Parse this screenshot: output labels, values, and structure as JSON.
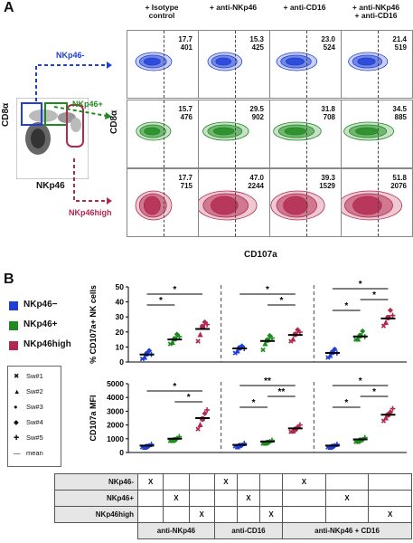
{
  "panels": {
    "a": "A",
    "b": "B"
  },
  "flow": {
    "columns": [
      "+ Isotype control",
      "+ anti-NKp46",
      "+ anti-CD16",
      "+ anti-NKp46 + anti-CD16"
    ],
    "col_lines": [
      [
        "+ Isotype",
        "control"
      ],
      [
        "+ anti-NKp46",
        ""
      ],
      [
        "+ anti-CD16",
        ""
      ],
      [
        "+ anti-NKp46",
        "+ anti-CD16"
      ]
    ],
    "rows": [
      {
        "label": "NKp46-",
        "color": "#1f3fd6",
        "values": [
          [
            "17.7",
            "401"
          ],
          [
            "15.3",
            "425"
          ],
          [
            "23.0",
            "524"
          ],
          [
            "21.4",
            "519"
          ]
        ]
      },
      {
        "label": "NKp46+",
        "color": "#1f8a1f",
        "values": [
          [
            "15.7",
            "476"
          ],
          [
            "29.5",
            "902"
          ],
          [
            "31.8",
            "708"
          ],
          [
            "34.5",
            "885"
          ]
        ]
      },
      {
        "label": "NKp46high",
        "color": "#b2284e",
        "values": [
          [
            "17.7",
            "715"
          ],
          [
            "47.0",
            "2244"
          ],
          [
            "39.3",
            "1529"
          ],
          [
            "51.8",
            "2076"
          ]
        ]
      }
    ],
    "y_label": "CD8α",
    "x_label": "CD107a",
    "gating": {
      "y_label": "CD8α",
      "x_label": "NKp46"
    }
  },
  "legend": {
    "groups": [
      {
        "label": "NKp46−",
        "color": "#1f3fd6"
      },
      {
        "label": "NKp46+",
        "color": "#1f8a1f"
      },
      {
        "label": "NKp46high",
        "color": "#b2284e"
      }
    ],
    "subjects": [
      {
        "symbol": "✖",
        "label": "Sw#1"
      },
      {
        "symbol": "▲",
        "label": "Sw#2"
      },
      {
        "symbol": "●",
        "label": "Sw#3"
      },
      {
        "symbol": "◆",
        "label": "Sw#4"
      },
      {
        "symbol": "✚",
        "label": "Sw#5"
      },
      {
        "symbol": "—",
        "label": "mean"
      }
    ]
  },
  "chart_data": [
    {
      "type": "scatter",
      "ylabel": "% CD107a+ NK cells",
      "ylim": [
        0,
        50
      ],
      "yticks": [
        0,
        10,
        20,
        30,
        40,
        50
      ],
      "groups": [
        "NKp46−",
        "NKp46+",
        "NKp46high"
      ],
      "series": [
        {
          "treatment": "anti-NKp46",
          "means": [
            5,
            15,
            22
          ],
          "points": [
            [
              2,
              4,
              6,
              8,
              5
            ],
            [
              12,
              14,
              16,
              19,
              17
            ],
            [
              14,
              19,
              24,
              27,
              25
            ]
          ]
        },
        {
          "treatment": "anti-CD16",
          "means": [
            9,
            14,
            18
          ],
          "points": [
            [
              6,
              8,
              10,
              11,
              9
            ],
            [
              8,
              13,
              15,
              18,
              16
            ],
            [
              14,
              16,
              19,
              22,
              20
            ]
          ]
        },
        {
          "treatment": "anti-NKp46 + CD16",
          "means": [
            6,
            17,
            29
          ],
          "points": [
            [
              3,
              5,
              7,
              9,
              6
            ],
            [
              15,
              16,
              18,
              21,
              17
            ],
            [
              24,
              27,
              30,
              35,
              31
            ]
          ]
        }
      ],
      "significance": [
        {
          "treatment": 0,
          "pairs": [
            [
              0,
              1,
              "*"
            ],
            [
              0,
              2,
              "*"
            ]
          ]
        },
        {
          "treatment": 1,
          "pairs": [
            [
              1,
              2,
              "*"
            ],
            [
              0,
              2,
              "*"
            ]
          ]
        },
        {
          "treatment": 2,
          "pairs": [
            [
              0,
              1,
              "*"
            ],
            [
              1,
              2,
              "*"
            ],
            [
              0,
              2,
              "*"
            ]
          ]
        }
      ]
    },
    {
      "type": "scatter",
      "ylabel": "CD107a MFI",
      "ylim": [
        0,
        5000
      ],
      "yticks": [
        0,
        1000,
        2000,
        3000,
        4000,
        5000
      ],
      "groups": [
        "NKp46−",
        "NKp46+",
        "NKp46high"
      ],
      "series": [
        {
          "treatment": "anti-NKp46",
          "means": [
            500,
            1000,
            2500
          ],
          "points": [
            [
              400,
              450,
              500,
              550,
              600
            ],
            [
              850,
              950,
              1000,
              1100,
              1150
            ],
            [
              1700,
              2100,
              2500,
              2900,
              3100
            ]
          ]
        },
        {
          "treatment": "anti-CD16",
          "means": [
            550,
            800,
            1750
          ],
          "points": [
            [
              450,
              500,
              550,
              600,
              650
            ],
            [
              650,
              750,
              800,
              850,
              900
            ],
            [
              1500,
              1650,
              1750,
              1900,
              2000
            ]
          ]
        },
        {
          "treatment": "anti-NKp46 + CD16",
          "means": [
            500,
            950,
            2750
          ],
          "points": [
            [
              400,
              450,
              500,
              550,
              600
            ],
            [
              800,
              900,
              950,
              1000,
              1100
            ],
            [
              2300,
              2600,
              2800,
              3000,
              3200
            ]
          ]
        }
      ],
      "significance": [
        {
          "treatment": 0,
          "pairs": [
            [
              1,
              2,
              "*"
            ],
            [
              0,
              2,
              "*"
            ]
          ]
        },
        {
          "treatment": 1,
          "pairs": [
            [
              0,
              1,
              "*"
            ],
            [
              1,
              2,
              "**"
            ],
            [
              0,
              2,
              "**"
            ]
          ]
        },
        {
          "treatment": 2,
          "pairs": [
            [
              0,
              1,
              "*"
            ],
            [
              1,
              2,
              "*"
            ],
            [
              0,
              2,
              "*"
            ]
          ]
        }
      ]
    }
  ],
  "table": {
    "rows": [
      {
        "label": "NKp46-",
        "marks": [
          1,
          0,
          0,
          1,
          0,
          0,
          1,
          0,
          0
        ]
      },
      {
        "label": "NKp46+",
        "marks": [
          0,
          1,
          0,
          0,
          1,
          0,
          0,
          1,
          0
        ]
      },
      {
        "label": "NKp46high",
        "marks": [
          0,
          0,
          1,
          0,
          0,
          1,
          0,
          0,
          1
        ]
      }
    ],
    "mark": "X",
    "footer": [
      "anti-NKp46",
      "anti-CD16",
      "anti-NKp46 + CD16"
    ]
  }
}
